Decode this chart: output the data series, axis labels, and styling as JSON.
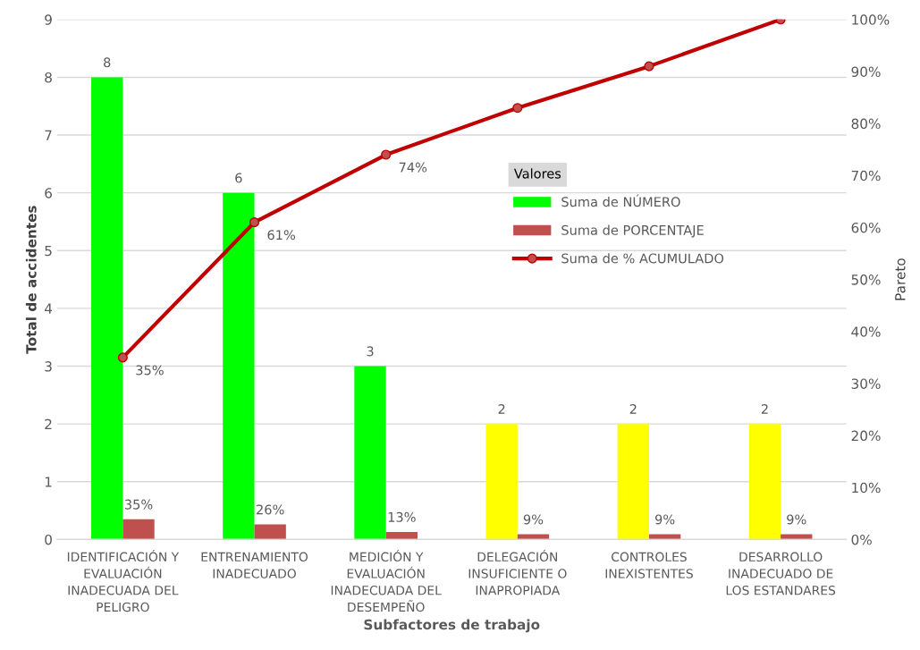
{
  "chart_data": {
    "type": "bar",
    "xlabel": "Subfactores de trabajo",
    "ylabel": "Total de accidentes",
    "y2label": "Pareto",
    "legend_title": "Valores",
    "legend": "right",
    "grid": "y",
    "categories": [
      "IDENTIFICACIÓN Y\nEVALUACIÓN\nINADECUADA DEL\nPELIGRO",
      "ENTRENAMIENTO\nINADECUADO",
      "MEDICIÓN Y\nEVALUACIÓN\nINADECUADA DEL\nDESEMPEÑO",
      "DELEGACIÓN\nINSUFICIENTE O\nINAPROPIADA",
      "CONTROLES\nINEXISTENTES",
      "DESARROLLO\nINADECUADO DE\nLOS ESTANDARES"
    ],
    "series": [
      {
        "name": "Suma de NÚMERO",
        "color": "#00ff00",
        "colors": [
          "#00ff00",
          "#00ff00",
          "#00ff00",
          "#ffff00",
          "#ffff00",
          "#ffff00"
        ],
        "values": [
          8,
          6,
          3,
          2,
          2,
          2
        ],
        "data_labels": true
      },
      {
        "name": "Suma de PORCENTAJE",
        "color": "#c0504d",
        "values": [
          0.35,
          0.26,
          0.13,
          0.09,
          0.09,
          0.09
        ],
        "value_labels": [
          "35%",
          "26%",
          "13%",
          "9%",
          "9%",
          "9%"
        ]
      },
      {
        "name": "Suma de % ACUMULADO",
        "type": "line",
        "axis": "y2",
        "color": "#c00000",
        "marker": "circle",
        "values": [
          35,
          61,
          74,
          83,
          91,
          100
        ],
        "value_labels": [
          "35%",
          "61%",
          "74%",
          null,
          null,
          null
        ]
      }
    ],
    "ylim": [
      0,
      9
    ],
    "yticks": [
      0,
      1,
      2,
      3,
      4,
      5,
      6,
      7,
      8,
      9
    ],
    "y2lim": [
      0,
      100
    ],
    "y2ticks": [
      {
        "value": 0,
        "label": "0%"
      },
      {
        "value": 10,
        "label": "10%"
      },
      {
        "value": 20,
        "label": "20%"
      },
      {
        "value": 30,
        "label": "30%"
      },
      {
        "value": 40,
        "label": "40%"
      },
      {
        "value": 50,
        "label": "50%"
      },
      {
        "value": 60,
        "label": "60%"
      },
      {
        "value": 70,
        "label": "70%"
      },
      {
        "value": 80,
        "label": "80%"
      },
      {
        "value": 90,
        "label": "90%"
      },
      {
        "value": 100,
        "label": "100%"
      }
    ]
  }
}
